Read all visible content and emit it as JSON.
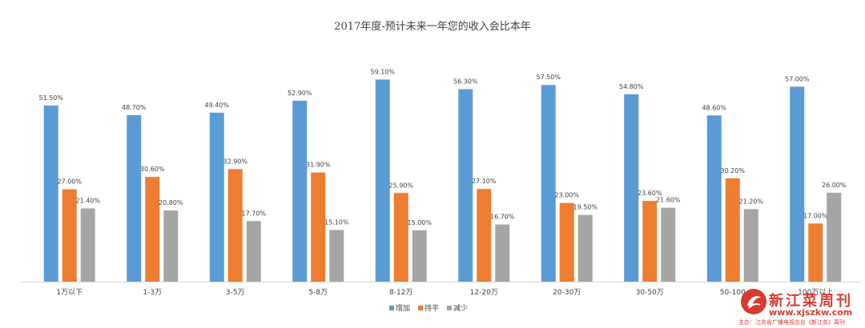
{
  "chart_data": {
    "type": "bar",
    "title": "2017年度-预计未来一年您的收入会比本年",
    "categories": [
      "1万以下",
      "1-3万",
      "3-5万",
      "5-8万",
      "8-12万",
      "12-20万",
      "20-30万",
      "30-50万",
      "50-100",
      "100万以上"
    ],
    "series": [
      {
        "name": "增加",
        "color": "#5B9BD5",
        "values": [
          51.5,
          48.7,
          49.4,
          52.9,
          59.1,
          56.3,
          57.5,
          54.8,
          48.6,
          57.0
        ],
        "labels": [
          "51.50%",
          "48.70%",
          "49.40%",
          "52.90%",
          "59.10%",
          "56.30%",
          "57.50%",
          "54.80%",
          "48.60%",
          "57.00%"
        ]
      },
      {
        "name": "持平",
        "color": "#ED7D31",
        "values": [
          27.0,
          30.6,
          32.9,
          31.9,
          25.9,
          27.1,
          23.0,
          23.6,
          30.2,
          17.0
        ],
        "labels": [
          "27.00%",
          "30.60%",
          "32.90%",
          "31.90%",
          "25.90%",
          "27.10%",
          "23.00%",
          "23.60%",
          "30.20%",
          "17.00%"
        ]
      },
      {
        "name": "减少",
        "color": "#A5A5A5",
        "values": [
          21.4,
          20.8,
          17.7,
          15.1,
          15.0,
          16.7,
          19.5,
          21.6,
          21.2,
          26.0
        ],
        "labels": [
          "21.40%",
          "20.80%",
          "17.70%",
          "15.10%",
          "15.00%",
          "16.70%",
          "19.50%",
          "21.60%",
          "21.20%",
          "26.00%"
        ]
      }
    ],
    "ylim": [
      0,
      62
    ],
    "grid": false,
    "legend_position": "bottom"
  },
  "watermark": {
    "brand": "新江菜周刊",
    "url": "www.xjszkw.com",
    "source": "主办：江苏省广播电视总台《新江苏》周刊"
  }
}
